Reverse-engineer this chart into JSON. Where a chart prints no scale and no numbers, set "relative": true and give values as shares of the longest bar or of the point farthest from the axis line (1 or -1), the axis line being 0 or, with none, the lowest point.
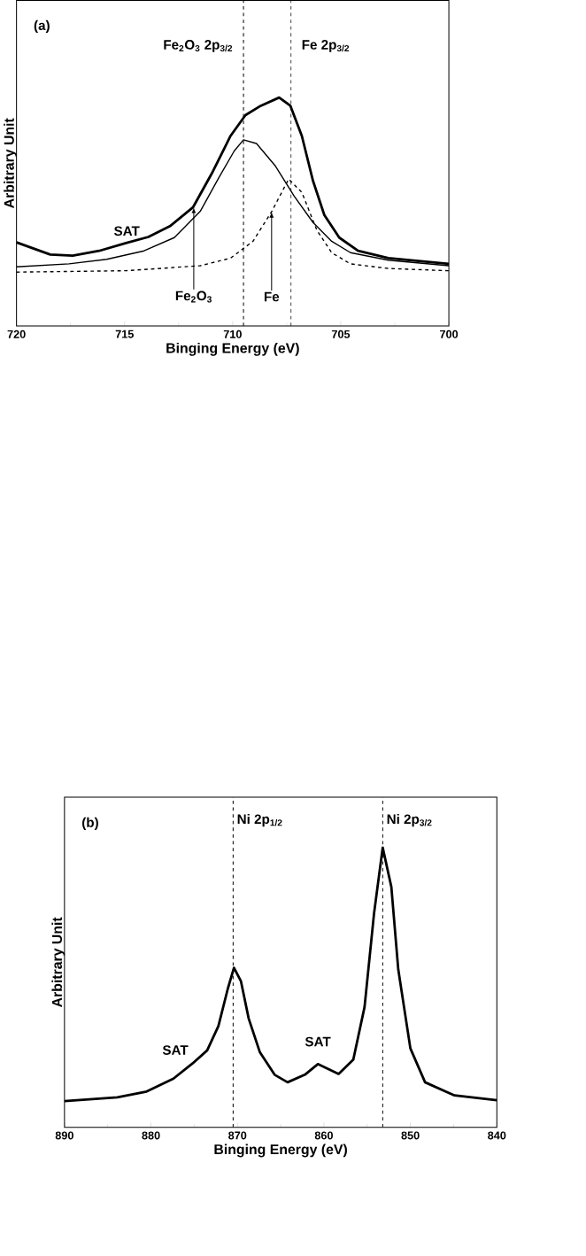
{
  "chart_data": [
    {
      "type": "line",
      "relative": true,
      "xlabel": "Binging Energy (eV)",
      "ylabel": "Arbitrary Unit",
      "xlim": [
        720,
        700
      ],
      "xticks": [
        720,
        715,
        710,
        705,
        700
      ],
      "grid": false,
      "marker": "none",
      "series": [
        {
          "color": "#000000",
          "line_style": "solid",
          "x": [
            720,
            718.44,
            717.4,
            716.18,
            714.97,
            713.9,
            712.9,
            711.84,
            710.97,
            710.1,
            709.41,
            708.7,
            707.85,
            707.33,
            706.8,
            706.28,
            705.76,
            705.07,
            704.2,
            702.8,
            700
          ],
          "values": [
            0.366,
            0.313,
            0.308,
            0.329,
            0.362,
            0.39,
            0.437,
            0.519,
            0.667,
            0.832,
            0.923,
            0.964,
            1.0,
            0.964,
            0.832,
            0.634,
            0.486,
            0.387,
            0.329,
            0.297,
            0.272
          ]
        },
        {
          "color": "#000000",
          "line_style": "solid",
          "x": [
            720,
            717.57,
            715.83,
            714.1,
            712.7,
            711.5,
            710.63,
            709.93,
            709.5,
            708.9,
            708.02,
            707.15,
            706.28,
            705.42,
            704.55,
            702.8,
            700
          ],
          "values": [
            0.259,
            0.272,
            0.292,
            0.329,
            0.387,
            0.502,
            0.651,
            0.766,
            0.815,
            0.799,
            0.7,
            0.568,
            0.453,
            0.371,
            0.321,
            0.288,
            0.264
          ]
        },
        {
          "color": "#000000",
          "line_style": "dashed",
          "x": [
            720,
            714.97,
            711.5,
            710.1,
            709.06,
            708.19,
            707.41,
            706.8,
            706.11,
            705.42,
            704.55,
            702.8,
            700
          ],
          "values": [
            0.236,
            0.242,
            0.264,
            0.297,
            0.371,
            0.502,
            0.643,
            0.585,
            0.42,
            0.321,
            0.272,
            0.252,
            0.242
          ]
        }
      ],
      "ref_lines": [
        {
          "axis": "x",
          "value": 709.5,
          "label": "Fe$_{2}$O$_{3}$ 2p$_{3/2}$",
          "line_style": "dashed"
        },
        {
          "axis": "x",
          "value": 707.3,
          "label": "Fe 2p$_{3/2}$",
          "line_style": "dashed"
        }
      ],
      "annotations": [
        "(a)",
        {
          "text": "SAT",
          "x": 714.9,
          "y": 0.362
        },
        {
          "text": "Fe$_{2}$O$_{3}$",
          "x": 711.8,
          "y": 0.52
        },
        {
          "text": "Fe",
          "x": 708.2,
          "y": 0.5
        }
      ]
    },
    {
      "type": "line",
      "relative": true,
      "xlabel": "Binging Energy (eV)",
      "ylabel": "Arbitrary Unit",
      "xlim": [
        890,
        840
      ],
      "xticks": [
        890,
        880,
        870,
        860,
        850,
        840
      ],
      "grid": false,
      "marker": "none",
      "series": [
        {
          "color": "#000000",
          "line_style": "solid",
          "x": [
            890,
            883.9,
            880.5,
            877.4,
            875.2,
            873.5,
            872.2,
            871.1,
            870.4,
            869.6,
            868.7,
            867.4,
            865.7,
            864.2,
            862.2,
            860.7,
            858.3,
            856.6,
            855.3,
            854.2,
            853.2,
            852.2,
            851.4,
            850.0,
            848.3,
            844.9,
            840
          ],
          "values": [
            0.094,
            0.107,
            0.128,
            0.174,
            0.228,
            0.275,
            0.362,
            0.497,
            0.57,
            0.523,
            0.389,
            0.268,
            0.188,
            0.161,
            0.188,
            0.226,
            0.191,
            0.242,
            0.43,
            0.765,
            1.0,
            0.859,
            0.564,
            0.282,
            0.161,
            0.114,
            0.097
          ]
        }
      ],
      "ref_lines": [
        {
          "axis": "x",
          "value": 870.5,
          "label": "Ni 2p$_{1/2}$",
          "line_style": "dashed"
        },
        {
          "axis": "x",
          "value": 853.2,
          "label": "Ni 2p$_{3/2}$",
          "line_style": "dashed"
        }
      ],
      "annotations": [
        "(b)",
        {
          "text": "SAT",
          "x": 875.2,
          "y": 0.228
        },
        {
          "text": "SAT",
          "x": 860.7,
          "y": 0.226
        }
      ]
    }
  ]
}
